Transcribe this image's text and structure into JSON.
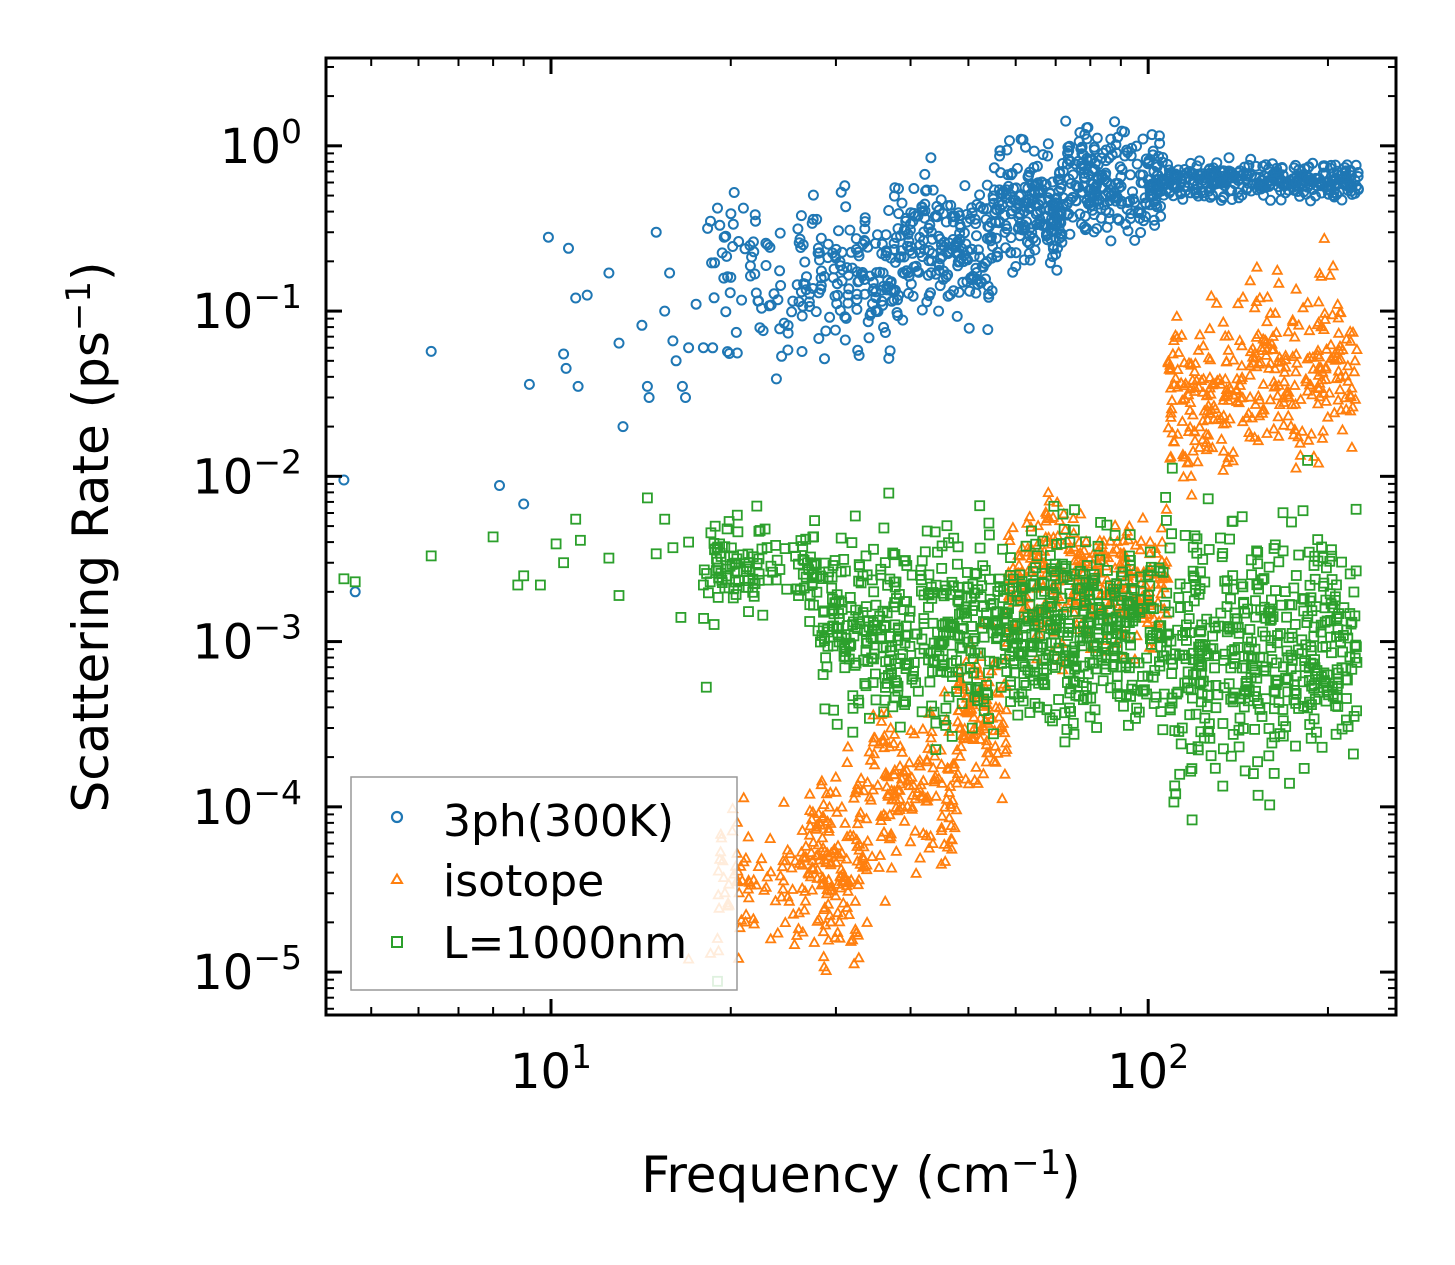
{
  "chart_data": {
    "type": "scatter",
    "title": "",
    "xlabel": "Frequency",
    "xlabel_unit_base": "cm",
    "xlabel_unit_exp": "−1",
    "ylabel": "Scattering Rate",
    "ylabel_unit_base": "ps",
    "ylabel_unit_exp": "−1",
    "xscale": "log",
    "yscale": "log",
    "xlim": [
      4.2,
      260
    ],
    "ylim": [
      5.5e-06,
      3.4
    ],
    "x_ticks": [
      {
        "value": 10,
        "base": "10",
        "exp": "1"
      },
      {
        "value": 100,
        "base": "10",
        "exp": "2"
      }
    ],
    "y_ticks": [
      {
        "value": 1,
        "base": "10",
        "exp": "0"
      },
      {
        "value": 0.1,
        "base": "10",
        "exp": "−1"
      },
      {
        "value": 0.01,
        "base": "10",
        "exp": "−2"
      },
      {
        "value": 0.001,
        "base": "10",
        "exp": "−3"
      },
      {
        "value": 0.0001,
        "base": "10",
        "exp": "−4"
      },
      {
        "value": 1e-05,
        "base": "10",
        "exp": "−5"
      }
    ],
    "legend_position": "lower-left",
    "series": [
      {
        "name": "3ph(300K)",
        "marker": "circle",
        "color": "#1f77b4",
        "points": [
          [
            4.5,
            0.0095
          ],
          [
            4.7,
            0.002
          ],
          [
            6.3,
            0.057
          ],
          [
            8.2,
            0.0088
          ],
          [
            9.0,
            0.0068
          ],
          [
            9.2,
            0.036
          ],
          [
            9.9,
            0.28
          ],
          [
            10.5,
            0.055
          ],
          [
            10.6,
            0.045
          ],
          [
            10.7,
            0.24
          ],
          [
            11.0,
            0.12
          ],
          [
            11.1,
            0.035
          ],
          [
            11.5,
            0.125
          ],
          [
            12.5,
            0.17
          ],
          [
            13.0,
            0.064
          ],
          [
            13.2,
            0.02
          ],
          [
            14.2,
            0.082
          ],
          [
            14.5,
            0.035
          ],
          [
            14.6,
            0.03
          ],
          [
            15.0,
            0.3
          ],
          [
            15.5,
            0.1
          ],
          [
            15.8,
            0.17
          ],
          [
            16.0,
            0.066
          ],
          [
            16.2,
            0.05
          ],
          [
            16.6,
            0.035
          ],
          [
            16.8,
            0.03
          ],
          [
            17.0,
            0.06
          ],
          [
            17.5,
            0.11
          ],
          [
            18.0,
            0.06
          ],
          [
            18.5,
            0.35
          ],
          [
            19.0,
            0.42
          ],
          [
            19.5,
            0.28
          ],
          [
            20.0,
            0.16
          ],
          [
            21.0,
            0.42
          ],
          [
            22.0,
            0.35
          ]
        ],
        "bands": [
          {
            "x_from": 18,
            "x_to": 26,
            "y_center": 0.14,
            "spread_decades": 0.5,
            "count": 60
          },
          {
            "x_from": 26,
            "x_to": 38,
            "y_center": 0.17,
            "spread_decades": 0.45,
            "count": 150
          },
          {
            "x_from": 38,
            "x_to": 55,
            "y_center": 0.25,
            "spread_decades": 0.4,
            "count": 200
          },
          {
            "x_from": 55,
            "x_to": 72,
            "y_center": 0.4,
            "spread_decades": 0.35,
            "count": 200
          },
          {
            "x_from": 72,
            "x_to": 105,
            "y_center": 0.6,
            "spread_decades": 0.3,
            "count": 220
          },
          {
            "x_from": 105,
            "x_to": 225,
            "y_center": 0.62,
            "spread_decades": 0.12,
            "count": 320
          }
        ]
      },
      {
        "name": "isotope",
        "marker": "triangle",
        "color": "#ff7f0e",
        "points": [
          [
            17.0,
            1.2e-05
          ],
          [
            18.5,
            1.3e-05
          ],
          [
            19.0,
            1.6e-05
          ]
        ],
        "bands": [
          {
            "x_from": 19,
            "x_to": 27,
            "y_center": 3.5e-05,
            "spread_decades": 0.35,
            "count": 90
          },
          {
            "x_from": 27,
            "x_to": 34,
            "y_center": 5e-05,
            "spread_decades": 0.55,
            "count": 160
          },
          {
            "x_from": 34,
            "x_to": 48,
            "y_center": 0.00012,
            "spread_decades": 0.5,
            "count": 160
          },
          {
            "x_from": 48,
            "x_to": 58,
            "y_center": 0.00035,
            "spread_decades": 0.4,
            "count": 110
          },
          {
            "x_from": 58,
            "x_to": 80,
            "y_center": 0.0025,
            "spread_decades": 0.45,
            "count": 180
          },
          {
            "x_from": 80,
            "x_to": 108,
            "y_center": 0.0022,
            "spread_decades": 0.4,
            "count": 150
          },
          {
            "x_from": 108,
            "x_to": 140,
            "y_center": 0.03,
            "spread_decades": 0.45,
            "count": 140
          },
          {
            "x_from": 140,
            "x_to": 225,
            "y_center": 0.045,
            "spread_decades": 0.55,
            "count": 220
          }
        ]
      },
      {
        "name": "L=1000nm",
        "marker": "square",
        "color": "#2ca02c",
        "points": [
          [
            4.5,
            0.0024
          ],
          [
            4.7,
            0.0023
          ],
          [
            6.3,
            0.0033
          ],
          [
            8.0,
            0.0043
          ],
          [
            8.8,
            0.0022
          ],
          [
            9.0,
            0.0025
          ],
          [
            9.6,
            0.0022
          ],
          [
            10.2,
            0.0039
          ],
          [
            10.5,
            0.003
          ],
          [
            11.0,
            0.0055
          ],
          [
            11.2,
            0.0041
          ],
          [
            12.5,
            0.0032
          ],
          [
            13.0,
            0.0019
          ],
          [
            14.5,
            0.0074
          ],
          [
            15.0,
            0.0034
          ],
          [
            15.5,
            0.0055
          ],
          [
            16.0,
            0.0037
          ],
          [
            16.5,
            0.0014
          ],
          [
            17.0,
            0.004
          ],
          [
            18.0,
            0.0022
          ],
          [
            18.2,
            0.00053
          ],
          [
            19.0,
            8.8e-06
          ]
        ],
        "bands": [
          {
            "x_from": 18,
            "x_to": 28,
            "y_center": 0.0028,
            "spread_decades": 0.3,
            "count": 120
          },
          {
            "x_from": 28,
            "x_to": 60,
            "y_center": 0.0012,
            "spread_decades": 0.55,
            "count": 420
          },
          {
            "x_from": 60,
            "x_to": 105,
            "y_center": 0.0012,
            "spread_decades": 0.6,
            "count": 380
          },
          {
            "x_from": 105,
            "x_to": 225,
            "y_center": 0.0009,
            "spread_decades": 0.75,
            "count": 460
          }
        ]
      }
    ]
  }
}
